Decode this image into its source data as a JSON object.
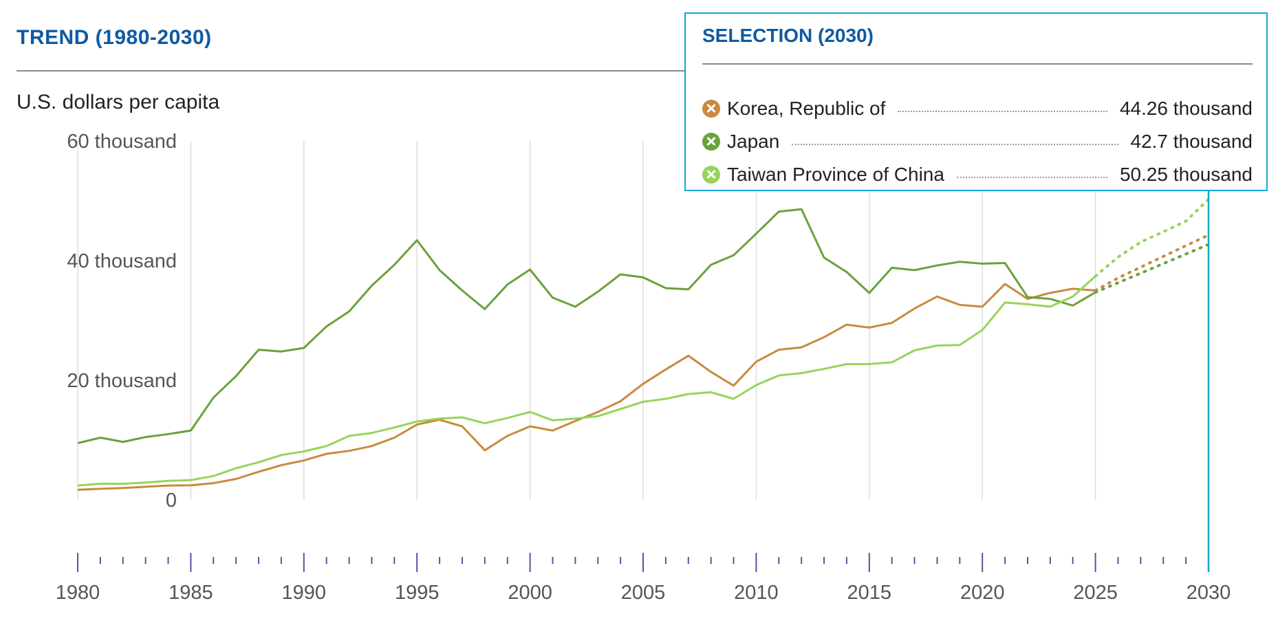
{
  "header": {
    "title": "TREND (1980-2030)",
    "units_label": "U.S. dollars per capita"
  },
  "colors": {
    "title": "#0f5aa1",
    "korea": "#c98a3e",
    "japan": "#6aa23a",
    "taiwan": "#96d45a",
    "selection_border": "#17a4d9",
    "cursor": "#14a9c4",
    "axis_tick": "#5a4fa3",
    "grid": "#dddddd"
  },
  "selection": {
    "title": "SELECTION (2030)",
    "items": [
      {
        "name": "Korea, Republic of",
        "value": "44.26 thousand",
        "color": "#c98a3e",
        "icon": "x-circle-icon"
      },
      {
        "name": "Japan",
        "value": "42.7 thousand",
        "color": "#6aa23a",
        "icon": "x-circle-icon"
      },
      {
        "name": "Taiwan Province of China",
        "value": "50.25 thousand",
        "color": "#96d45a",
        "icon": "x-circle-icon"
      }
    ]
  },
  "chart_data": {
    "type": "line",
    "title": "TREND (1980-2030)",
    "ylabel": "U.S. dollars per capita",
    "xlabel": "",
    "ylim": [
      0,
      60000
    ],
    "xlim": [
      1980,
      2030
    ],
    "y_ticks": [
      {
        "value": 0,
        "label": "0"
      },
      {
        "value": 20000,
        "label": "20 thousand"
      },
      {
        "value": 40000,
        "label": "40 thousand"
      },
      {
        "value": 60000,
        "label": "60 thousand"
      }
    ],
    "x_tick_labels": [
      "1980",
      "1985",
      "1990",
      "1995",
      "2000",
      "2005",
      "2010",
      "2015",
      "2020",
      "2025",
      "2030"
    ],
    "forecast_start": 2025,
    "selected_year": 2030,
    "series": [
      {
        "name": "Korea, Republic of",
        "color": "#c98a3e",
        "x": [
          1980,
          1981,
          1982,
          1983,
          1984,
          1985,
          1986,
          1987,
          1988,
          1989,
          1990,
          1991,
          1992,
          1993,
          1994,
          1995,
          1996,
          1997,
          1998,
          1999,
          2000,
          2001,
          2002,
          2003,
          2004,
          2005,
          2006,
          2007,
          2008,
          2009,
          2010,
          2011,
          2012,
          2013,
          2014,
          2015,
          2016,
          2017,
          2018,
          2019,
          2020,
          2021,
          2022,
          2023,
          2024,
          2025,
          2026,
          2027,
          2028,
          2029,
          2030
        ],
        "values": [
          1700,
          1850,
          1990,
          2200,
          2400,
          2450,
          2800,
          3500,
          4700,
          5800,
          6600,
          7700,
          8200,
          9000,
          10400,
          12600,
          13400,
          12300,
          8300,
          10700,
          12300,
          11600,
          13200,
          14700,
          16500,
          19400,
          21800,
          24100,
          21400,
          19100,
          23100,
          25100,
          25500,
          27200,
          29300,
          28800,
          29600,
          32000,
          34000,
          32600,
          32300,
          36100,
          33600,
          34600,
          35300,
          35000,
          37100,
          38900,
          40700,
          42500,
          44260
        ]
      },
      {
        "name": "Japan",
        "color": "#6aa23a",
        "x": [
          1980,
          1981,
          1982,
          1983,
          1984,
          1985,
          1986,
          1987,
          1988,
          1989,
          1990,
          1991,
          1992,
          1993,
          1994,
          1995,
          1996,
          1997,
          1998,
          1999,
          2000,
          2001,
          2002,
          2003,
          2004,
          2005,
          2006,
          2007,
          2008,
          2009,
          2010,
          2011,
          2012,
          2013,
          2014,
          2015,
          2016,
          2017,
          2018,
          2019,
          2020,
          2021,
          2022,
          2023,
          2024,
          2025,
          2026,
          2027,
          2028,
          2029,
          2030
        ],
        "values": [
          9500,
          10400,
          9700,
          10500,
          11000,
          11600,
          17100,
          20700,
          25100,
          24800,
          25400,
          29000,
          31500,
          35800,
          39300,
          43400,
          38400,
          35000,
          31900,
          36000,
          38500,
          33800,
          32300,
          34800,
          37700,
          37200,
          35400,
          35200,
          39300,
          40900,
          44500,
          48200,
          48600,
          40500,
          38100,
          34600,
          38800,
          38400,
          39200,
          39800,
          39500,
          39600,
          33900,
          33600,
          32500,
          34700,
          36300,
          37900,
          39500,
          41100,
          42700
        ]
      },
      {
        "name": "Taiwan Province of China",
        "color": "#96d45a",
        "x": [
          1980,
          1981,
          1982,
          1983,
          1984,
          1985,
          1986,
          1987,
          1988,
          1989,
          1990,
          1991,
          1992,
          1993,
          1994,
          1995,
          1996,
          1997,
          1998,
          1999,
          2000,
          2001,
          2002,
          2003,
          2004,
          2005,
          2006,
          2007,
          2008,
          2009,
          2010,
          2011,
          2012,
          2013,
          2014,
          2015,
          2016,
          2017,
          2018,
          2019,
          2020,
          2021,
          2022,
          2023,
          2024,
          2025,
          2026,
          2027,
          2028,
          2029,
          2030
        ],
        "values": [
          2400,
          2700,
          2700,
          2900,
          3200,
          3300,
          4000,
          5300,
          6300,
          7500,
          8100,
          9000,
          10700,
          11200,
          12100,
          13100,
          13600,
          13800,
          12800,
          13700,
          14700,
          13300,
          13600,
          14000,
          15200,
          16400,
          16900,
          17700,
          18000,
          16900,
          19200,
          20800,
          21200,
          21900,
          22700,
          22700,
          23000,
          25000,
          25800,
          25900,
          28400,
          33000,
          32700,
          32300,
          34000,
          37400,
          40600,
          43100,
          44800,
          46600,
          50250
        ]
      }
    ]
  }
}
